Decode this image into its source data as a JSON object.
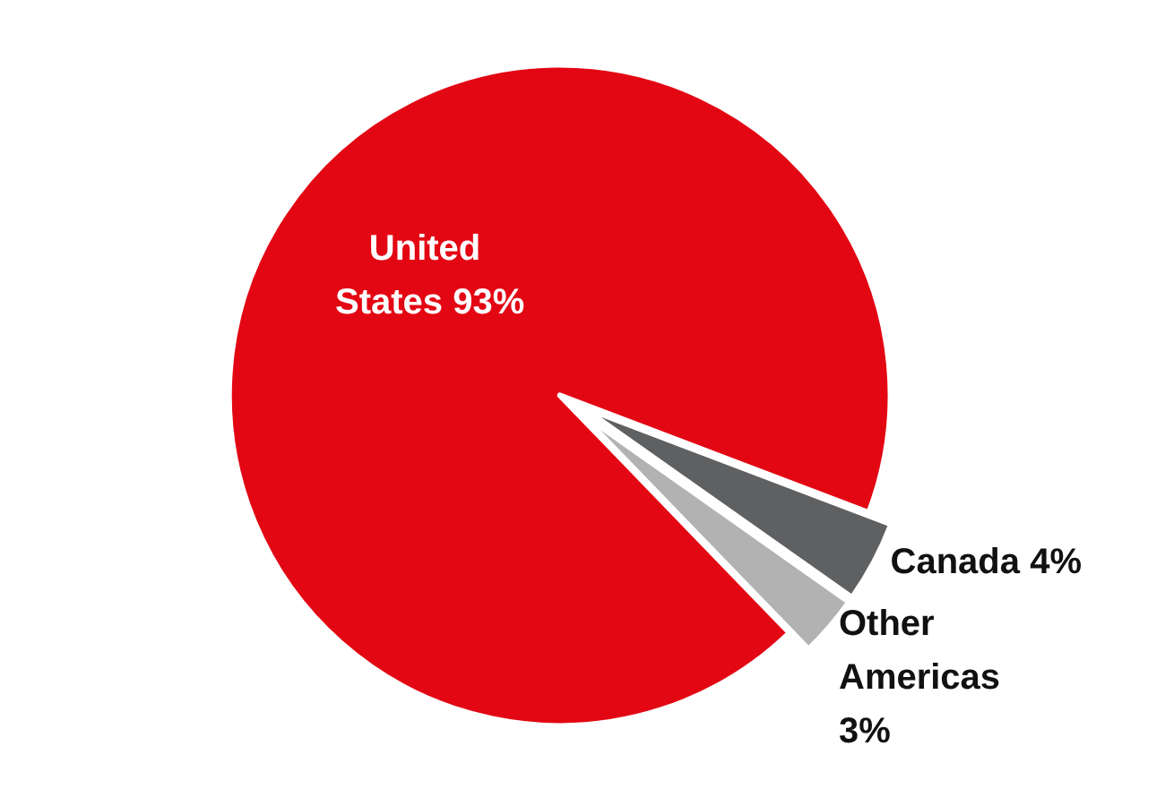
{
  "chart_data": {
    "type": "pie",
    "categories": [
      "United States",
      "Canada",
      "Other Americas"
    ],
    "values": [
      93,
      4,
      3
    ],
    "value_labels": [
      "93%",
      "4%",
      "3%"
    ],
    "colors": [
      "#e30613",
      "#5f6062",
      "#b2b2b2"
    ]
  }
}
